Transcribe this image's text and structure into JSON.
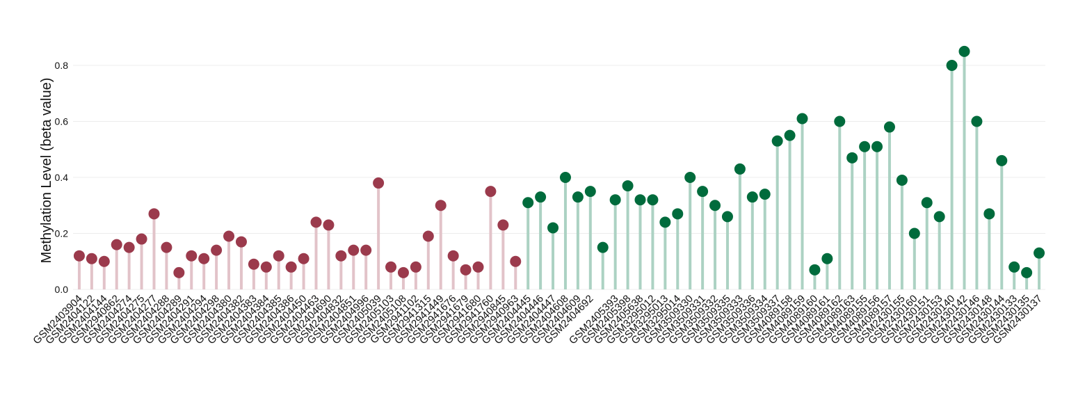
{
  "chart_data": {
    "type": "lollipop",
    "y_label": "Methylation Level (beta value)",
    "categories": [
      "GSM2403904",
      "GSM2404122",
      "GSM2404144",
      "GSM2940862",
      "GSM2404274",
      "GSM2404275",
      "GSM2404277",
      "GSM2404288",
      "GSM2404289",
      "GSM2404291",
      "GSM2404294",
      "GSM2404298",
      "GSM2404380",
      "GSM2404382",
      "GSM2404383",
      "GSM2404384",
      "GSM2404385",
      "GSM2404386",
      "GSM2404450",
      "GSM2404463",
      "GSM2404690",
      "GSM2404832",
      "GSM2404851",
      "GSM2404996",
      "GSM2405039",
      "GSM2405103",
      "GSM2405108",
      "GSM2941102",
      "GSM2941315",
      "GSM2941449",
      "GSM2941676",
      "GSM2941679",
      "GSM2941680",
      "GSM2941760",
      "GSM2940845",
      "GSM2940963",
      "GSM2404445",
      "GSM2404446",
      "GSM2404447",
      "GSM2404608",
      "GSM2404609",
      "GSM2404692",
      null,
      "GSM2405393",
      "GSM2405398",
      "GSM2405638",
      "GSM3295012",
      "GSM3295013",
      "GSM3295014",
      "GSM3509330",
      "GSM3509331",
      "GSM3509332",
      "GSM3509335",
      "GSM3509333",
      "GSM3509336",
      "GSM3509334",
      "GSM3509337",
      "GSM4089158",
      "GSM4089159",
      "GSM4089160",
      "GSM4089161",
      "GSM4089162",
      "GSM4089163",
      "GSM4089155",
      "GSM4089156",
      "GSM4089157",
      "GSM2430155",
      "GSM2430160",
      "GSM2430151",
      "GSM2430153",
      "GSM2430140",
      "GSM2430142",
      "GSM2430146",
      "GSM2430148",
      "GSM2430144",
      "GSM2430133",
      "GSM2430135",
      "GSM2430137"
    ],
    "series": [
      {
        "color": "#9b3a4c",
        "stem_color": "#e2c3c9",
        "values": [
          0.12,
          0.11,
          0.1,
          0.16,
          0.15,
          0.18,
          0.27,
          0.15,
          0.06,
          0.12,
          0.11,
          0.14,
          0.19,
          0.17,
          0.09,
          0.08,
          0.12,
          0.08,
          0.11,
          0.24,
          0.23,
          0.12,
          0.14,
          0.14,
          0.38,
          0.08,
          0.06,
          0.08,
          0.19,
          0.3,
          0.12,
          0.07,
          0.08,
          0.35,
          0.23,
          0.1,
          null,
          null,
          null,
          null,
          null,
          null,
          null,
          null,
          null,
          null,
          null,
          null,
          null,
          null,
          null,
          null,
          null,
          null,
          null,
          null,
          null,
          null,
          null,
          null,
          null,
          null,
          null,
          null,
          null,
          null,
          null,
          null,
          null,
          null,
          null,
          null,
          null,
          null,
          null,
          null,
          null,
          null
        ]
      },
      {
        "color": "#006b3c",
        "stem_color": "#acd2c3",
        "values": [
          null,
          null,
          null,
          null,
          null,
          null,
          null,
          null,
          null,
          null,
          null,
          null,
          null,
          null,
          null,
          null,
          null,
          null,
          null,
          null,
          null,
          null,
          null,
          null,
          null,
          null,
          null,
          null,
          null,
          null,
          null,
          null,
          null,
          null,
          null,
          null,
          0.31,
          0.33,
          0.22,
          0.4,
          0.33,
          0.35,
          0.15,
          0.32,
          0.37,
          0.32,
          0.32,
          0.24,
          0.27,
          0.4,
          0.35,
          0.3,
          0.26,
          0.43,
          0.33,
          0.34,
          0.53,
          0.55,
          0.61,
          0.07,
          0.11,
          0.6,
          0.47,
          0.51,
          0.51,
          0.58,
          0.39,
          0.2,
          0.31,
          0.26,
          0.8,
          0.85,
          0.6,
          0.27,
          0.46,
          0.08,
          0.06,
          0.13
        ]
      }
    ],
    "ylim": [
      0,
      0.85
    ],
    "yticks": [
      {
        "value": 0,
        "label": "0.0"
      },
      0.2,
      0.4,
      0.6,
      0.8
    ],
    "grid": true
  }
}
